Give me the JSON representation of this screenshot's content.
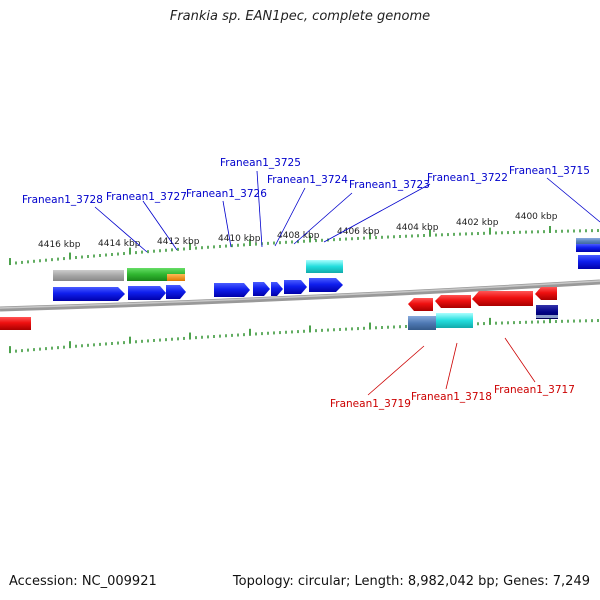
{
  "title": "Frankia sp. EAN1pec, complete genome",
  "footer": {
    "accession": "Accession: NC_009921",
    "summary": "Topology: circular; Length: 8,982,042 bp; Genes: 7,249"
  },
  "kbp_scale_labels": [
    "4416 kbp",
    "4414 kbp",
    "4412 kbp",
    "4410 kbp",
    "4408 kbp",
    "4406 kbp",
    "4404 kbp",
    "4402 kbp",
    "4400 kbp"
  ],
  "forward_genes": [
    "Franean1_3728",
    "Franean1_3727",
    "Franean1_3726",
    "Franean1_3725",
    "Franean1_3724",
    "Franean1_3723",
    "Franean1_3722",
    "Franean1_3715"
  ],
  "reverse_genes": [
    "Franean1_3719",
    "Franean1_3718",
    "Franean1_3717"
  ],
  "colors": {
    "forward_label": "#0000cc",
    "reverse_label": "#cc0000",
    "genome_line": "#888888",
    "scale_ticks": "#1f8a1f"
  }
}
